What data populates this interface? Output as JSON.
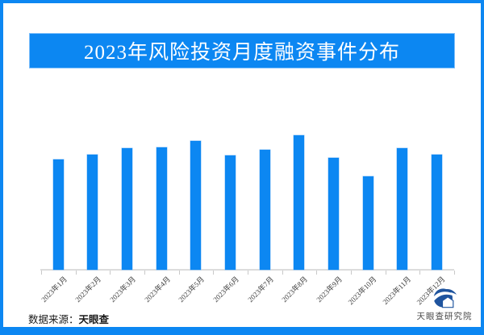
{
  "page": {
    "accent_blue": "#0c87f2",
    "logo_blue": "#1f549e",
    "source_label": "数据来源：",
    "source_name": "天眼查",
    "logo_text": "天眼查研究院"
  },
  "chart_data": {
    "type": "bar",
    "title": "2023年风险投资月度融资事件分布",
    "categories": [
      "2023年1月",
      "2023年2月",
      "2023年3月",
      "2023年4月",
      "2023年5月",
      "2023年6月",
      "2023年7月",
      "2023年8月",
      "2023年9月",
      "2023年10月",
      "2023年11月",
      "2023年12月"
    ],
    "values": [
      137,
      143,
      151,
      152,
      160,
      142,
      149,
      167,
      139,
      116,
      151,
      143
    ],
    "value_unit": "relative bar height in px — chart shows no y-axis or value labels",
    "bar_color": "#0c87f2",
    "xlabel": "",
    "ylabel": "",
    "grid": false,
    "legend": false,
    "x_tick_rotation_deg": 45,
    "baseline_note": "x-axis line with 13 boundary ticks, labels rotated 45°"
  }
}
